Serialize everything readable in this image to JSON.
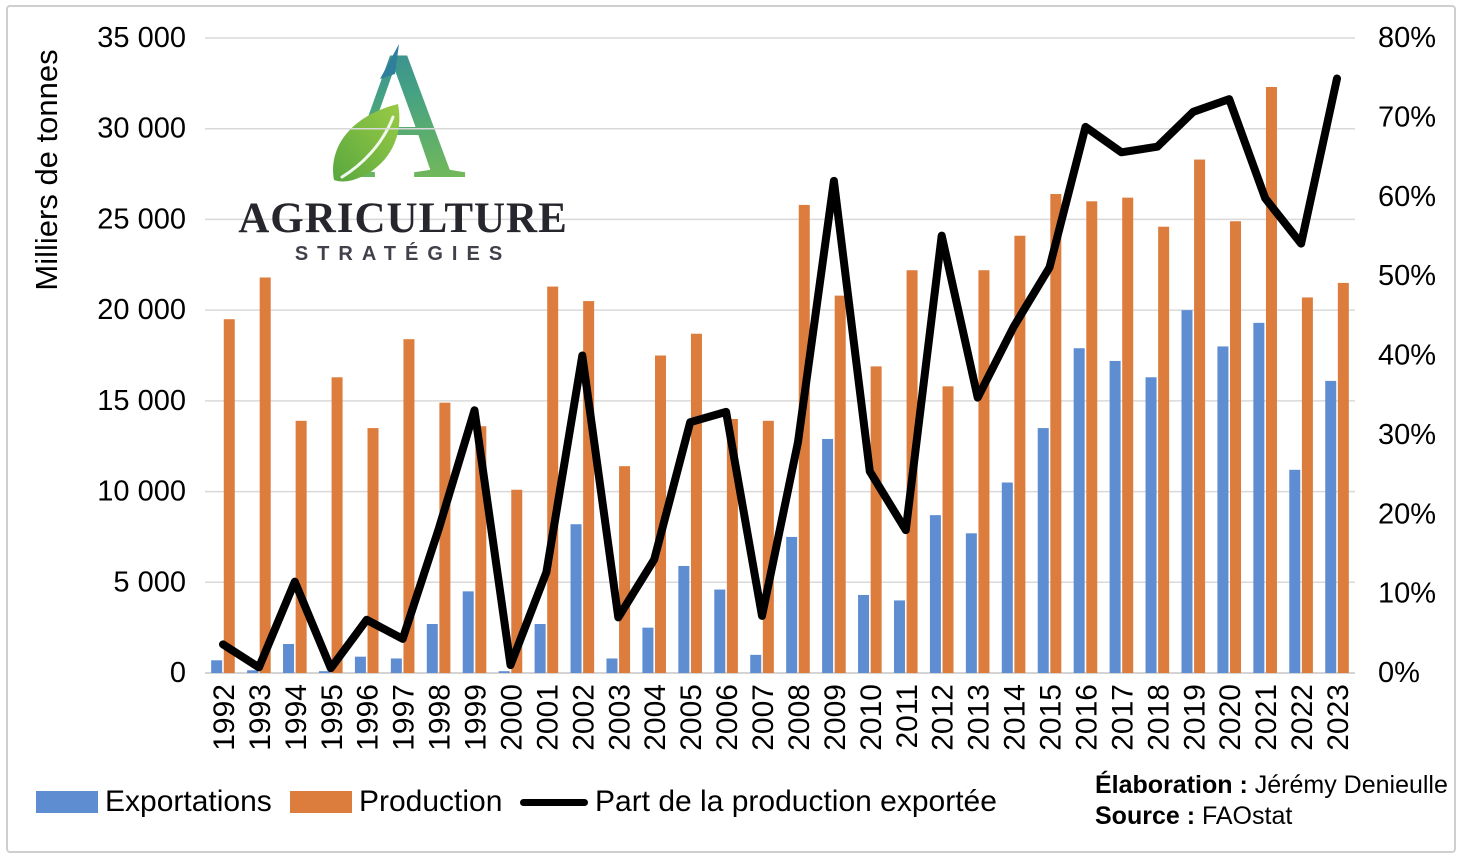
{
  "chart_data": {
    "type": "bar+line",
    "categories": [
      "1992",
      "1993",
      "1994",
      "1995",
      "1996",
      "1997",
      "1998",
      "1999",
      "2000",
      "2001",
      "2002",
      "2003",
      "2004",
      "2005",
      "2006",
      "2007",
      "2008",
      "2009",
      "2010",
      "2011",
      "2012",
      "2013",
      "2014",
      "2015",
      "2016",
      "2017",
      "2018",
      "2019",
      "2020",
      "2021",
      "2022",
      "2023"
    ],
    "series": [
      {
        "name": "Exportations",
        "type": "bar",
        "axis": "left",
        "color": "#5E8DD1",
        "values": [
          700,
          150,
          1600,
          100,
          900,
          800,
          2700,
          4500,
          100,
          2700,
          8200,
          800,
          2500,
          5900,
          4600,
          1000,
          7500,
          12900,
          4300,
          4000,
          8700,
          7700,
          10500,
          13500,
          17900,
          17200,
          16300,
          20000,
          18000,
          19300,
          11200,
          16100
        ]
      },
      {
        "name": "Production",
        "type": "bar",
        "axis": "left",
        "color": "#DC7D3E",
        "values": [
          19500,
          21800,
          13900,
          16300,
          13500,
          18400,
          14900,
          13600,
          10100,
          21300,
          20500,
          11400,
          17500,
          18700,
          14000,
          13900,
          25800,
          20800,
          16900,
          22200,
          15800,
          22200,
          24100,
          26400,
          26000,
          26200,
          24600,
          28300,
          24900,
          32300,
          20700,
          21500
        ]
      },
      {
        "name": "Part de la production exportée",
        "type": "line",
        "axis": "right",
        "color": "#000000",
        "values": [
          3.6,
          0.7,
          11.5,
          0.6,
          6.7,
          4.3,
          18.1,
          33.1,
          1.0,
          12.7,
          40.0,
          7.0,
          14.3,
          31.6,
          32.9,
          7.2,
          29.1,
          62.0,
          25.4,
          18.0,
          55.1,
          34.7,
          43.6,
          51.1,
          68.8,
          65.6,
          66.3,
          70.7,
          72.3,
          59.8,
          54.1,
          74.9
        ]
      }
    ],
    "left_axis": {
      "label": "Milliers de tonnes",
      "min": 0,
      "max": 35000,
      "step": 5000,
      "tick_labels": [
        "0",
        "5 000",
        "10 000",
        "15 000",
        "20 000",
        "25 000",
        "30 000",
        "35 000"
      ]
    },
    "right_axis": {
      "min": 0,
      "max": 80,
      "step": 10,
      "tick_labels": [
        "0%",
        "10%",
        "20%",
        "30%",
        "40%",
        "50%",
        "60%",
        "70%",
        "80%"
      ]
    },
    "grid": true,
    "gridline_color": "#d9d9d9",
    "axisline_color": "#c6c6c6",
    "legend_position": "bottom"
  },
  "logo": {
    "brand": "AGRICULTURE",
    "sub": "STRATÉGIES"
  },
  "credits": {
    "elaboration_label": "Élaboration :",
    "elaboration_value": "Jérémy Denieulle",
    "source_label": "Source :",
    "source_value": "FAOstat"
  }
}
